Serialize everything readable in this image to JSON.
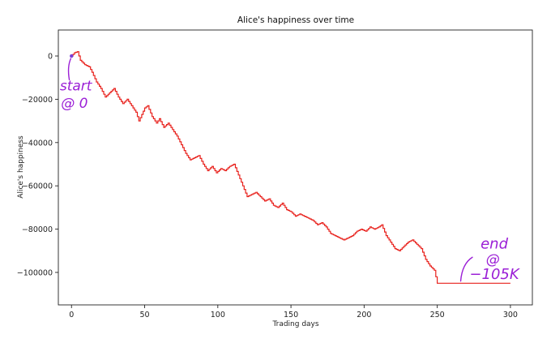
{
  "chart_data": {
    "type": "line",
    "title": "Alice's happiness over time",
    "xlabel": "Trading days",
    "ylabel": "Alice's happiness",
    "xlim": [
      -9,
      315
    ],
    "ylim": [
      -115000,
      12000
    ],
    "x_ticks": [
      0,
      50,
      100,
      150,
      200,
      250,
      300
    ],
    "y_ticks": [
      0,
      -20000,
      -40000,
      -60000,
      -80000,
      -100000
    ],
    "x_tick_labels": [
      "0",
      "50",
      "100",
      "150",
      "200",
      "250",
      "300"
    ],
    "y_tick_labels": [
      "0",
      "−20000",
      "−40000",
      "−60000",
      "−80000",
      "−100000"
    ],
    "grid": false,
    "line_style": "step",
    "series": [
      {
        "color": "#e8211c",
        "points": [
          [
            0,
            0
          ],
          [
            2,
            1500
          ],
          [
            4,
            2000
          ],
          [
            6,
            -2000
          ],
          [
            9,
            -4000
          ],
          [
            12,
            -5000
          ],
          [
            14,
            -7500
          ],
          [
            17,
            -12000
          ],
          [
            20,
            -15000
          ],
          [
            23,
            -19000
          ],
          [
            26,
            -17000
          ],
          [
            29,
            -15000
          ],
          [
            32,
            -19000
          ],
          [
            35,
            -22000
          ],
          [
            38,
            -20000
          ],
          [
            41,
            -23000
          ],
          [
            44,
            -26000
          ],
          [
            46,
            -30000
          ],
          [
            48,
            -27000
          ],
          [
            50,
            -24000
          ],
          [
            52,
            -23000
          ],
          [
            55,
            -28000
          ],
          [
            58,
            -31000
          ],
          [
            60,
            -29000
          ],
          [
            63,
            -33000
          ],
          [
            66,
            -31000
          ],
          [
            69,
            -34000
          ],
          [
            72,
            -37000
          ],
          [
            75,
            -41000
          ],
          [
            78,
            -45000
          ],
          [
            81,
            -48000
          ],
          [
            84,
            -47000
          ],
          [
            87,
            -46000
          ],
          [
            90,
            -50000
          ],
          [
            93,
            -53000
          ],
          [
            96,
            -51000
          ],
          [
            99,
            -54000
          ],
          [
            102,
            -52000
          ],
          [
            105,
            -53000
          ],
          [
            108,
            -51000
          ],
          [
            111,
            -50000
          ],
          [
            114,
            -55000
          ],
          [
            117,
            -60000
          ],
          [
            120,
            -65000
          ],
          [
            123,
            -64000
          ],
          [
            126,
            -63000
          ],
          [
            129,
            -65000
          ],
          [
            132,
            -67000
          ],
          [
            135,
            -66000
          ],
          [
            138,
            -69000
          ],
          [
            141,
            -70000
          ],
          [
            144,
            -68000
          ],
          [
            147,
            -71000
          ],
          [
            150,
            -72000
          ],
          [
            153,
            -74000
          ],
          [
            156,
            -73000
          ],
          [
            159,
            -74000
          ],
          [
            162,
            -75000
          ],
          [
            165,
            -76000
          ],
          [
            168,
            -78000
          ],
          [
            171,
            -77000
          ],
          [
            174,
            -79000
          ],
          [
            177,
            -82000
          ],
          [
            180,
            -83000
          ],
          [
            183,
            -84000
          ],
          [
            186,
            -85000
          ],
          [
            189,
            -84000
          ],
          [
            192,
            -83000
          ],
          [
            195,
            -81000
          ],
          [
            198,
            -80000
          ],
          [
            201,
            -81000
          ],
          [
            204,
            -79000
          ],
          [
            207,
            -80000
          ],
          [
            210,
            -79000
          ],
          [
            212,
            -78000
          ],
          [
            215,
            -83000
          ],
          [
            218,
            -86000
          ],
          [
            221,
            -89000
          ],
          [
            224,
            -90000
          ],
          [
            227,
            -88000
          ],
          [
            230,
            -86000
          ],
          [
            233,
            -85000
          ],
          [
            236,
            -87000
          ],
          [
            239,
            -89000
          ],
          [
            242,
            -94000
          ],
          [
            245,
            -97000
          ],
          [
            248,
            -99000
          ],
          [
            250,
            -105000
          ],
          [
            300,
            -105000
          ]
        ]
      }
    ],
    "annotations": [
      {
        "text": "start",
        "x": 3,
        "y": -16000,
        "color": "#9b1fd6"
      },
      {
        "text": "@ 0",
        "x": 2,
        "y": -24000,
        "color": "#9b1fd6"
      },
      {
        "text": "end",
        "x": 289,
        "y": -89000,
        "color": "#9b1fd6"
      },
      {
        "text": "@",
        "x": 288,
        "y": -96000,
        "color": "#9b1fd6"
      },
      {
        "text": "−105K",
        "x": 289,
        "y": -103000,
        "color": "#9b1fd6"
      }
    ]
  }
}
